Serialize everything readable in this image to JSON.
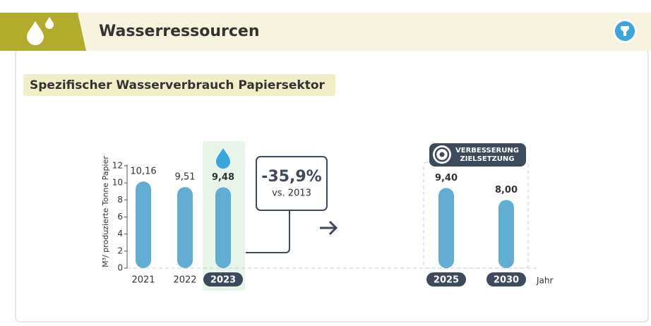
{
  "chart_data": {
    "type": "bar",
    "title": "Wasserressourcen",
    "subtitle": "Spezifischer Wasserverbrauch Papiersektor",
    "y_label": "M³/ produzierte Tonne Papier",
    "x_label": "Jahr",
    "categories": [
      "2021",
      "2022",
      "2023",
      "2025",
      "2030"
    ],
    "values": [
      10.16,
      9.51,
      9.48,
      9.4,
      8.0
    ],
    "value_labels": [
      "10,16",
      "9,51",
      "9,48",
      "9,40",
      "8,00"
    ],
    "color": "#62aed3",
    "highlight_indices": [
      2,
      3,
      4
    ],
    "target_indices": [
      3,
      4
    ],
    "ylim": [
      0,
      12
    ],
    "yticks": [
      0,
      2,
      4,
      6,
      8,
      10,
      12
    ],
    "annotation": {
      "text": "-35,9%",
      "subtext": "vs. 2013"
    },
    "target_label": [
      "VERBESSERUNG",
      "ZIELSETZUNG"
    ]
  }
}
